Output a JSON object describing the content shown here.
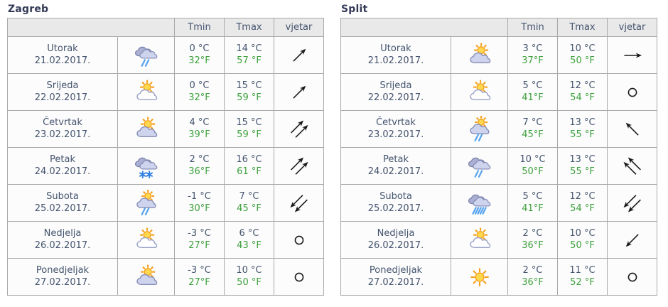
{
  "colors": {
    "title": "#333a56",
    "text": "#44546e",
    "fahrenheit": "#3da13d",
    "header_bg": "#e9e9e9",
    "border": "#a9a9a9",
    "arrow": "#1a1a1a",
    "rain_blue": "#55a3ee",
    "snow_blue": "#2f7fe0",
    "sun_fill": "#ffd84d",
    "sun_stroke": "#f5a01a",
    "cloud_light": "#cfd4ee",
    "cloud_dark": "#aab0d2"
  },
  "tables": [
    {
      "city": "Zagreb",
      "col_headers": [
        "Tmin",
        "Tmax",
        "vjetar"
      ],
      "rows": [
        {
          "day": "Utorak",
          "date": "21.02.2017.",
          "icon": "cloud-rain",
          "tmin_c": "0 °C",
          "tmin_f": "32°F",
          "tmax_c": "14 °C",
          "tmax_f": "57 °F",
          "wind_dir": "ne",
          "wind_double": false
        },
        {
          "day": "Srijeda",
          "date": "22.02.2017.",
          "icon": "partly-cloudy-white",
          "tmin_c": "0 °C",
          "tmin_f": "32°F",
          "tmax_c": "15 °C",
          "tmax_f": "59 °F",
          "wind_dir": "ne",
          "wind_double": false
        },
        {
          "day": "Četvrtak",
          "date": "23.02.2017.",
          "icon": "mostly-cloudy",
          "tmin_c": "4 °C",
          "tmin_f": "39°F",
          "tmax_c": "15 °C",
          "tmax_f": "59 °F",
          "wind_dir": "ne",
          "wind_double": true
        },
        {
          "day": "Petak",
          "date": "24.02.2017.",
          "icon": "snow",
          "tmin_c": "2 °C",
          "tmin_f": "36°F",
          "tmax_c": "16 °C",
          "tmax_f": "61 °F",
          "wind_dir": "ne",
          "wind_double": true
        },
        {
          "day": "Subota",
          "date": "25.02.2017.",
          "icon": "sun-rain",
          "tmin_c": "-1 °C",
          "tmin_f": "30°F",
          "tmax_c": "7 °C",
          "tmax_f": "45 °F",
          "wind_dir": "sw",
          "wind_double": true
        },
        {
          "day": "Nedjelja",
          "date": "26.02.2017.",
          "icon": "partly-cloudy-white",
          "tmin_c": "-3 °C",
          "tmin_f": "27°F",
          "tmax_c": "6 °C",
          "tmax_f": "43 °F",
          "wind_dir": "calm",
          "wind_double": false
        },
        {
          "day": "Ponedjeljak",
          "date": "27.02.2017.",
          "icon": "mostly-cloudy",
          "tmin_c": "-3 °C",
          "tmin_f": "27°F",
          "tmax_c": "10 °C",
          "tmax_f": "50 °F",
          "wind_dir": "calm",
          "wind_double": false
        }
      ]
    },
    {
      "city": "Split",
      "col_headers": [
        "Tmin",
        "Tmax",
        "vjetar"
      ],
      "rows": [
        {
          "day": "Utorak",
          "date": "21.02.2017.",
          "icon": "mostly-cloudy",
          "tmin_c": "3 °C",
          "tmin_f": "37°F",
          "tmax_c": "10 °C",
          "tmax_f": "50 °F",
          "wind_dir": "e",
          "wind_double": false
        },
        {
          "day": "Srijeda",
          "date": "22.02.2017.",
          "icon": "partly-cloudy-white",
          "tmin_c": "5 °C",
          "tmin_f": "41°F",
          "tmax_c": "12 °C",
          "tmax_f": "54 °F",
          "wind_dir": "calm",
          "wind_double": false
        },
        {
          "day": "Četvrtak",
          "date": "23.02.2017.",
          "icon": "sun-rain",
          "tmin_c": "7 °C",
          "tmin_f": "45°F",
          "tmax_c": "13 °C",
          "tmax_f": "55 °F",
          "wind_dir": "nw",
          "wind_double": false
        },
        {
          "day": "Petak",
          "date": "24.02.2017.",
          "icon": "cloud-rain",
          "tmin_c": "10 °C",
          "tmin_f": "50°F",
          "tmax_c": "13 °C",
          "tmax_f": "55 °F",
          "wind_dir": "nw",
          "wind_double": true
        },
        {
          "day": "Subota",
          "date": "25.02.2017.",
          "icon": "heavy-rain",
          "tmin_c": "5 °C",
          "tmin_f": "41°F",
          "tmax_c": "12 °C",
          "tmax_f": "54 °F",
          "wind_dir": "sw",
          "wind_double": true
        },
        {
          "day": "Nedjelja",
          "date": "26.02.2017.",
          "icon": "partly-cloudy-white",
          "tmin_c": "2 °C",
          "tmin_f": "36°F",
          "tmax_c": "10 °C",
          "tmax_f": "50 °F",
          "wind_dir": "sw",
          "wind_double": false
        },
        {
          "day": "Ponedjeljak",
          "date": "27.02.2017.",
          "icon": "sunny",
          "tmin_c": "2 °C",
          "tmin_f": "36°F",
          "tmax_c": "11 °C",
          "tmax_f": "52 °F",
          "wind_dir": "calm",
          "wind_double": false
        }
      ]
    }
  ]
}
